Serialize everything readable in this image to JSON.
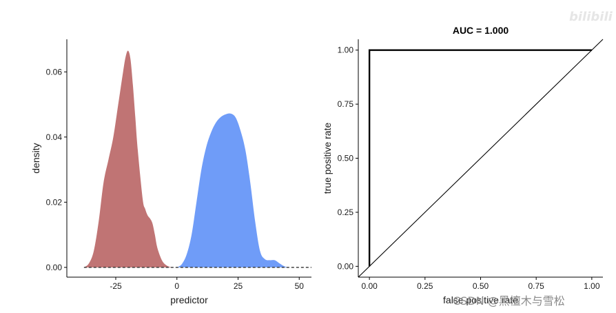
{
  "chart_data": [
    {
      "type": "area",
      "title": "",
      "xlabel": "predictor",
      "ylabel": "density",
      "xlim": [
        -45,
        55
      ],
      "ylim": [
        -0.003,
        0.07
      ],
      "xticks": [
        -25,
        0,
        25,
        50
      ],
      "xtick_labels": [
        "-25",
        "0",
        "25",
        "50"
      ],
      "yticks": [
        0,
        0.02,
        0.04,
        0.06
      ],
      "ytick_labels": [
        "0.00",
        "0.02",
        "0.04",
        "0.06"
      ],
      "grid": false,
      "baseline": {
        "y": 0,
        "style": "dashed",
        "from": -38,
        "to": 55
      },
      "series": [
        {
          "color": "#c07474",
          "x": [
            -38,
            -36,
            -34,
            -32,
            -30,
            -28,
            -26,
            -24,
            -22,
            -21,
            -20,
            -19,
            -18,
            -17,
            -16,
            -14,
            -13,
            -12,
            -11,
            -10,
            -9,
            -8,
            -6,
            -4,
            -2
          ],
          "y": [
            0.0,
            0.0012,
            0.005,
            0.014,
            0.026,
            0.033,
            0.04,
            0.05,
            0.06,
            0.0645,
            0.0665,
            0.064,
            0.056,
            0.046,
            0.036,
            0.021,
            0.018,
            0.016,
            0.015,
            0.0135,
            0.01,
            0.006,
            0.002,
            0.0005,
            0.0
          ]
        },
        {
          "color": "#6f9cf8",
          "x": [
            0,
            2,
            4,
            6,
            8,
            10,
            12,
            14,
            16,
            18,
            20,
            22,
            24,
            26,
            28,
            30,
            32,
            34,
            36,
            38,
            40,
            42,
            44,
            46
          ],
          "y": [
            0.0,
            0.001,
            0.004,
            0.01,
            0.02,
            0.03,
            0.037,
            0.0415,
            0.0445,
            0.0462,
            0.047,
            0.0472,
            0.046,
            0.042,
            0.036,
            0.026,
            0.014,
            0.005,
            0.0025,
            0.0022,
            0.0022,
            0.0012,
            0.0003,
            0.0
          ]
        }
      ]
    },
    {
      "type": "line",
      "title": "AUC = 1.000",
      "xlabel": "false positive rate",
      "ylabel": "true positive rate",
      "xlim": [
        -0.05,
        1.05
      ],
      "ylim": [
        -0.05,
        1.05
      ],
      "xticks": [
        0,
        0.25,
        0.5,
        0.75,
        1
      ],
      "xtick_labels": [
        "0.00",
        "0.25",
        "0.50",
        "0.75",
        "1.00"
      ],
      "yticks": [
        0,
        0.25,
        0.5,
        0.75,
        1
      ],
      "ytick_labels": [
        "0.00",
        "0.25",
        "0.50",
        "0.75",
        "1.00"
      ],
      "grid": false,
      "series": [
        {
          "color": "#000000",
          "x": [
            0,
            0,
            1
          ],
          "y": [
            0,
            1,
            1
          ]
        },
        {
          "color": "#000000",
          "x": [
            -0.05,
            1.05
          ],
          "y": [
            -0.05,
            1.05
          ]
        }
      ]
    }
  ],
  "watermarks": {
    "bottom": "CSDN @黑檀木与雪松",
    "top": "bilibili"
  }
}
